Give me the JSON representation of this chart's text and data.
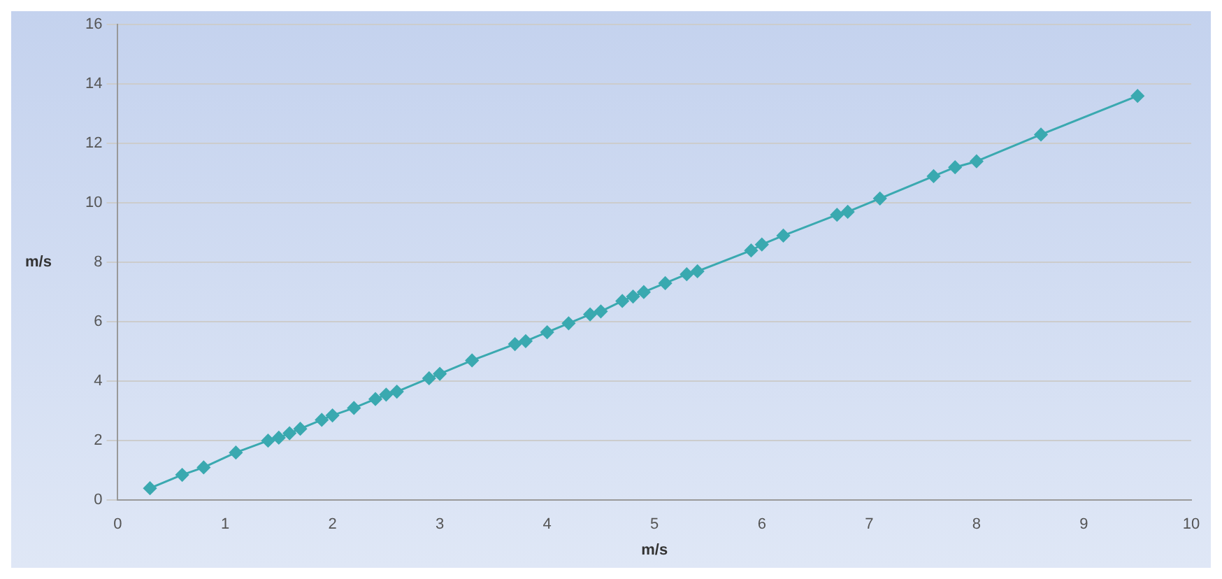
{
  "chart_data": {
    "type": "line",
    "xlabel": "m/s",
    "ylabel": "m/s",
    "x": [
      0.3,
      0.6,
      0.8,
      1.1,
      1.4,
      1.5,
      1.6,
      1.7,
      1.9,
      2.0,
      2.2,
      2.4,
      2.5,
      2.6,
      2.9,
      3.0,
      3.3,
      3.7,
      3.8,
      4.0,
      4.2,
      4.4,
      4.5,
      4.7,
      4.8,
      4.9,
      5.1,
      5.3,
      5.4,
      5.9,
      6.0,
      6.2,
      6.7,
      6.8,
      7.1,
      7.6,
      7.8,
      8.0,
      8.6,
      9.5
    ],
    "series": [
      {
        "color": "#3aa9b0",
        "values": [
          0.4,
          0.85,
          1.1,
          1.6,
          2.0,
          2.1,
          2.25,
          2.4,
          2.7,
          2.85,
          3.1,
          3.4,
          3.55,
          3.65,
          4.1,
          4.25,
          4.7,
          5.25,
          5.35,
          5.65,
          5.95,
          6.25,
          6.35,
          6.7,
          6.85,
          7.0,
          7.3,
          7.6,
          7.7,
          8.4,
          8.6,
          8.9,
          9.6,
          9.7,
          10.15,
          10.9,
          11.2,
          11.4,
          12.3,
          13.6
        ]
      }
    ],
    "xlim": [
      0,
      10
    ],
    "xticks": [
      0,
      1,
      2,
      3,
      4,
      5,
      6,
      7,
      8,
      9,
      10
    ],
    "ylim": [
      0,
      16
    ],
    "yticks": [
      0,
      2,
      4,
      6,
      8,
      10,
      12,
      14,
      16
    ],
    "grid": "y",
    "legend": false,
    "marker": "diamond",
    "line_style": "solid"
  }
}
